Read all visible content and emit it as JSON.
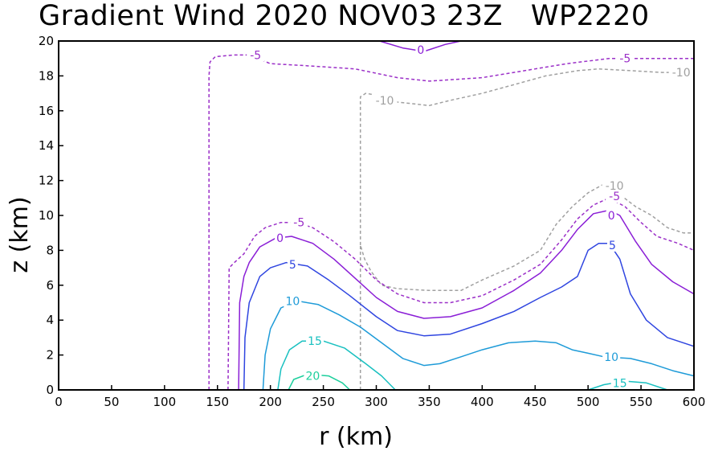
{
  "chart_data": {
    "type": "contour",
    "title": "Gradient Wind 2020 NOV03 23Z   WP2220",
    "xlabel": "r (km)",
    "ylabel": "z (km)",
    "xlim": [
      0,
      600
    ],
    "ylim": [
      0,
      20
    ],
    "xticks": [
      "0",
      "50",
      "100",
      "150",
      "200",
      "250",
      "300",
      "350",
      "400",
      "450",
      "500",
      "550",
      "600"
    ],
    "yticks": [
      "0",
      "2",
      "4",
      "6",
      "8",
      "10",
      "12",
      "14",
      "16",
      "18",
      "20"
    ],
    "grid": false,
    "contours": [
      {
        "level": -10,
        "color": "#a0a0a0",
        "dash": true,
        "labels": [
          {
            "text": "-10",
            "x": 308,
            "y": 16.6
          },
          {
            "text": "-10",
            "x": 588,
            "y": 18.2
          },
          {
            "text": "-10",
            "x": 525,
            "y": 11.7
          }
        ],
        "paths": [
          [
            [
              285,
              0
            ],
            [
              285,
              8.3
            ],
            [
              289,
              7.5
            ],
            [
              295,
              6.8
            ],
            [
              305,
              6.0
            ],
            [
              320,
              5.8
            ],
            [
              350,
              5.7
            ],
            [
              380,
              5.7
            ],
            [
              400,
              6.3
            ],
            [
              430,
              7.1
            ],
            [
              455,
              8.0
            ],
            [
              470,
              9.5
            ],
            [
              485,
              10.5
            ],
            [
              500,
              11.3
            ],
            [
              515,
              11.8
            ],
            [
              530,
              11.2
            ],
            [
              545,
              10.5
            ],
            [
              560,
              10.0
            ],
            [
              575,
              9.3
            ],
            [
              590,
              9.0
            ],
            [
              600,
              9.0
            ]
          ],
          [
            [
              285,
              8.3
            ],
            [
              285,
              16.8
            ],
            [
              290,
              17.0
            ],
            [
              300,
              16.9
            ],
            [
              320,
              16.5
            ],
            [
              350,
              16.3
            ],
            [
              370,
              16.6
            ],
            [
              400,
              17.0
            ],
            [
              430,
              17.5
            ],
            [
              460,
              18.0
            ],
            [
              490,
              18.3
            ],
            [
              510,
              18.4
            ],
            [
              540,
              18.3
            ],
            [
              570,
              18.2
            ],
            [
              600,
              18.2
            ]
          ]
        ]
      },
      {
        "level": -5,
        "color": "#9b30c8",
        "dash": true,
        "labels": [
          {
            "text": "-5",
            "x": 186,
            "y": 19.2
          },
          {
            "text": "-5",
            "x": 535,
            "y": 19.0
          },
          {
            "text": "-5",
            "x": 227,
            "y": 9.6
          },
          {
            "text": "-5",
            "x": 525,
            "y": 11.1
          }
        ],
        "paths": [
          [
            [
              142,
              0
            ],
            [
              142,
              18.0
            ],
            [
              143,
              18.8
            ],
            [
              148,
              19.1
            ],
            [
              165,
              19.2
            ],
            [
              180,
              19.2
            ],
            [
              200,
              18.7
            ],
            [
              230,
              18.6
            ],
            [
              280,
              18.4
            ],
            [
              320,
              17.9
            ],
            [
              350,
              17.7
            ],
            [
              400,
              17.9
            ],
            [
              440,
              18.3
            ],
            [
              480,
              18.7
            ],
            [
              520,
              19.0
            ],
            [
              560,
              19.0
            ],
            [
              600,
              19.0
            ]
          ],
          [
            [
              160,
              0
            ],
            [
              161,
              7.0
            ],
            [
              166,
              7.3
            ],
            [
              175,
              7.8
            ],
            [
              185,
              8.8
            ],
            [
              195,
              9.3
            ],
            [
              210,
              9.6
            ],
            [
              225,
              9.6
            ],
            [
              240,
              9.3
            ],
            [
              260,
              8.5
            ],
            [
              280,
              7.5
            ],
            [
              300,
              6.3
            ],
            [
              320,
              5.5
            ],
            [
              345,
              5.0
            ],
            [
              370,
              5.0
            ],
            [
              400,
              5.4
            ],
            [
              430,
              6.3
            ],
            [
              455,
              7.2
            ],
            [
              475,
              8.6
            ],
            [
              490,
              9.8
            ],
            [
              505,
              10.6
            ],
            [
              520,
              11.0
            ],
            [
              535,
              10.5
            ],
            [
              550,
              9.6
            ],
            [
              565,
              8.8
            ],
            [
              585,
              8.4
            ],
            [
              600,
              8.0
            ]
          ]
        ]
      },
      {
        "level": 0,
        "color": "#8a1ed6",
        "dash": false,
        "labels": [
          {
            "text": "0",
            "x": 342,
            "y": 19.5
          },
          {
            "text": "0",
            "x": 209,
            "y": 8.7
          },
          {
            "text": "0",
            "x": 522,
            "y": 10.0
          }
        ],
        "paths": [
          [
            [
              303,
              20
            ],
            [
              325,
              19.6
            ],
            [
              345,
              19.4
            ],
            [
              365,
              19.8
            ],
            [
              380,
              20
            ]
          ],
          [
            [
              170,
              0
            ],
            [
              171,
              5.0
            ],
            [
              175,
              6.5
            ],
            [
              180,
              7.3
            ],
            [
              190,
              8.2
            ],
            [
              205,
              8.7
            ],
            [
              220,
              8.8
            ],
            [
              240,
              8.4
            ],
            [
              260,
              7.5
            ],
            [
              280,
              6.4
            ],
            [
              300,
              5.3
            ],
            [
              320,
              4.5
            ],
            [
              345,
              4.1
            ],
            [
              370,
              4.2
            ],
            [
              400,
              4.7
            ],
            [
              430,
              5.7
            ],
            [
              455,
              6.7
            ],
            [
              475,
              8.0
            ],
            [
              490,
              9.2
            ],
            [
              505,
              10.1
            ],
            [
              520,
              10.3
            ],
            [
              530,
              10.0
            ],
            [
              545,
              8.5
            ],
            [
              560,
              7.2
            ],
            [
              580,
              6.2
            ],
            [
              600,
              5.5
            ]
          ]
        ]
      },
      {
        "level": 5,
        "color": "#2f45e0",
        "dash": false,
        "labels": [
          {
            "text": "5",
            "x": 221,
            "y": 7.2
          },
          {
            "text": "5",
            "x": 523,
            "y": 8.3
          }
        ],
        "paths": [
          [
            [
              175,
              0
            ],
            [
              176,
              3.0
            ],
            [
              180,
              5.0
            ],
            [
              190,
              6.5
            ],
            [
              200,
              7.0
            ],
            [
              215,
              7.3
            ],
            [
              235,
              7.1
            ],
            [
              255,
              6.3
            ],
            [
              275,
              5.4
            ],
            [
              300,
              4.2
            ],
            [
              320,
              3.4
            ],
            [
              345,
              3.1
            ],
            [
              370,
              3.2
            ],
            [
              400,
              3.8
            ],
            [
              430,
              4.5
            ],
            [
              455,
              5.3
            ],
            [
              475,
              5.9
            ],
            [
              490,
              6.5
            ],
            [
              500,
              8.0
            ],
            [
              510,
              8.4
            ],
            [
              520,
              8.4
            ],
            [
              530,
              7.5
            ],
            [
              540,
              5.5
            ],
            [
              555,
              4.0
            ],
            [
              575,
              3.0
            ],
            [
              600,
              2.5
            ]
          ]
        ]
      },
      {
        "level": 10,
        "color": "#1e9bd8",
        "dash": false,
        "labels": [
          {
            "text": "10",
            "x": 221,
            "y": 5.1
          },
          {
            "text": "10",
            "x": 522,
            "y": 1.9
          }
        ],
        "paths": [
          [
            [
              193,
              0
            ],
            [
              195,
              2.0
            ],
            [
              200,
              3.5
            ],
            [
              210,
              4.7
            ],
            [
              225,
              5.1
            ],
            [
              245,
              4.9
            ],
            [
              265,
              4.3
            ],
            [
              285,
              3.6
            ],
            [
              305,
              2.7
            ],
            [
              325,
              1.8
            ],
            [
              345,
              1.4
            ],
            [
              360,
              1.5
            ],
            [
              380,
              1.9
            ],
            [
              400,
              2.3
            ],
            [
              425,
              2.7
            ],
            [
              450,
              2.8
            ],
            [
              470,
              2.7
            ],
            [
              485,
              2.3
            ],
            [
              500,
              2.1
            ],
            [
              515,
              1.9
            ],
            [
              540,
              1.8
            ],
            [
              560,
              1.5
            ],
            [
              580,
              1.1
            ],
            [
              600,
              0.8
            ]
          ]
        ]
      },
      {
        "level": 15,
        "color": "#18c0c0",
        "dash": false,
        "labels": [
          {
            "text": "15",
            "x": 242,
            "y": 2.8
          },
          {
            "text": "15",
            "x": 530,
            "y": 0.4
          }
        ],
        "paths": [
          [
            [
              207,
              0
            ],
            [
              210,
              1.2
            ],
            [
              218,
              2.3
            ],
            [
              230,
              2.8
            ],
            [
              250,
              2.8
            ],
            [
              270,
              2.4
            ],
            [
              290,
              1.5
            ],
            [
              305,
              0.8
            ],
            [
              318,
              0
            ]
          ],
          [
            [
              500,
              0
            ],
            [
              515,
              0.3
            ],
            [
              535,
              0.5
            ],
            [
              555,
              0.4
            ],
            [
              575,
              0
            ]
          ]
        ]
      },
      {
        "level": 20,
        "color": "#1ccf9c",
        "dash": false,
        "labels": [
          {
            "text": "20",
            "x": 240,
            "y": 0.8
          }
        ],
        "paths": [
          [
            [
              217,
              0
            ],
            [
              222,
              0.6
            ],
            [
              235,
              0.9
            ],
            [
              255,
              0.8
            ],
            [
              268,
              0.4
            ],
            [
              275,
              0
            ]
          ]
        ]
      }
    ]
  }
}
